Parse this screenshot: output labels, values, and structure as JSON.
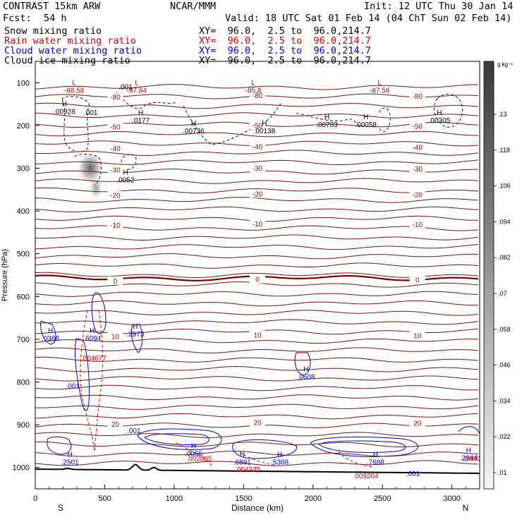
{
  "header": {
    "model": "CONTRAST 15km ARW",
    "center": "NCAR/MMM",
    "init": "Init: 12 UTC Thu 30 Jan 14",
    "fcst_label": "Fcst:",
    "fcst_value": "54 h",
    "valid": "Valid: 18 UTC Sat 01 Feb 14 (04 ChT Sun 02 Feb 14)",
    "fields": [
      {
        "name": "Snow mixing ratio",
        "xy": "XY=  96.0,  2.5 to  96.0,214.7",
        "color": "#000000"
      },
      {
        "name": "Rain water mixing ratio",
        "xy": "XY=  96.0,  2.5 to  96.0,214.7",
        "color": "#e00000"
      },
      {
        "name": "Cloud water mixing ratio",
        "xy": "XY=  96.0,  2.5 to  96.0,214.7",
        "color": "#0000cc"
      },
      {
        "name": "Cloud ice mixing ratio",
        "xy": "XY=  96.0,  2.5 to  96.0,214.7",
        "color": "#000000"
      }
    ]
  },
  "chart_data": {
    "type": "cross-section contour",
    "xlabel": "Distance (km)",
    "ylabel": "Pressure (hPa)",
    "x_ticks": [
      0,
      500,
      1000,
      1500,
      2000,
      2500,
      3000
    ],
    "xlim": [
      0,
      3200
    ],
    "y_ticks": [
      100,
      200,
      300,
      400,
      500,
      600,
      700,
      800,
      900,
      1000
    ],
    "ylim": [
      50,
      1050
    ],
    "left_end_label": "S",
    "right_end_label": "N",
    "colorbar": {
      "unit": "g kg⁻¹",
      "ticks": [
        ".01",
        ".022",
        ".034",
        ".046",
        ".058",
        ".07",
        ".082",
        ".094",
        ".106",
        ".118",
        ".13"
      ]
    },
    "isotherms": [
      {
        "label": "-80",
        "p": 130
      },
      {
        "label": "-50",
        "p": 200
      },
      {
        "label": "-40",
        "p": 250
      },
      {
        "label": "-30",
        "p": 300
      },
      {
        "label": "-20",
        "p": 360
      },
      {
        "label": "-10",
        "p": 430
      },
      {
        "label": "0",
        "p": 560
      },
      {
        "label": "10",
        "p": 690
      },
      {
        "label": "20",
        "p": 895
      }
    ],
    "highs_lows": [
      {
        "type": "L",
        "value": "-88.58",
        "x": 280,
        "p": 105
      },
      {
        "type": "L",
        "value": "-87.84",
        "x": 730,
        "p": 105
      },
      {
        "type": "L",
        "value": "-85.8",
        "x": 1570,
        "p": 105
      },
      {
        "type": "L",
        "value": "-87.56",
        "x": 2480,
        "p": 105
      },
      {
        "type": "H",
        "value": ".00928",
        "x": 210,
        "p": 155
      },
      {
        "type": "H",
        "value": ".0177",
        "x": 760,
        "p": 175
      },
      {
        "type": "H",
        "value": ".00736",
        "x": 1140,
        "p": 200
      },
      {
        "type": "H",
        "value": ".00138",
        "x": 1650,
        "p": 200
      },
      {
        "type": "H",
        "value": ".00703",
        "x": 2100,
        "p": 185
      },
      {
        "type": "H",
        "value": ".00058",
        "x": 2380,
        "p": 185
      },
      {
        "type": "H",
        "value": ".00305",
        "x": 2910,
        "p": 175
      },
      {
        "type": "H",
        "value": ".0052",
        "x": 650,
        "p": 315
      },
      {
        "type": "H",
        "value": ".0366",
        "x": 110,
        "p": 685
      },
      {
        "type": "H",
        "value": ".6094",
        "x": 410,
        "p": 685
      },
      {
        "type": "H",
        "value": ".2973",
        "x": 720,
        "p": 675
      },
      {
        "type": "H",
        "value": ".0608",
        "x": 1950,
        "p": 775
      },
      {
        "type": "H",
        "value": ".2501",
        "x": 250,
        "p": 975
      },
      {
        "type": "H",
        "value": ".0055",
        "x": 1140,
        "p": 955
      },
      {
        "type": "H",
        "value": ".6891",
        "x": 1490,
        "p": 975
      },
      {
        "type": "H",
        "value": ".5368",
        "x": 1760,
        "p": 975
      },
      {
        "type": "H",
        "value": ".7688",
        "x": 2450,
        "p": 975
      },
      {
        "type": "H",
        "value": ".2944",
        "x": 3120,
        "p": 965
      }
    ],
    "other_labels": [
      {
        "text": ".001",
        "x": 650,
        "p": 115,
        "color": "#000000"
      },
      {
        "text": ".001",
        "x": 400,
        "p": 175,
        "color": "#000000"
      },
      {
        "text": ".001",
        "x": 270,
        "p": 815,
        "color": "#0000cc"
      },
      {
        "text": ".001",
        "x": 710,
        "p": 920,
        "color": "#0000cc"
      },
      {
        "text": ".001",
        "x": 2720,
        "p": 1020,
        "color": "#0000cc"
      },
      {
        "text": ".004677",
        "x": 420,
        "p": 750,
        "color": "#e00000"
      },
      {
        "text": ".002865",
        "x": 1180,
        "p": 985,
        "color": "#e00000"
      },
      {
        "text": ".004935",
        "x": 1530,
        "p": 1010,
        "color": "#e00000"
      },
      {
        "text": ".009204",
        "x": 2380,
        "p": 1025,
        "color": "#e00000"
      },
      {
        "text": ".0000",
        "x": 3140,
        "p": 985,
        "color": "#e00000"
      }
    ]
  }
}
